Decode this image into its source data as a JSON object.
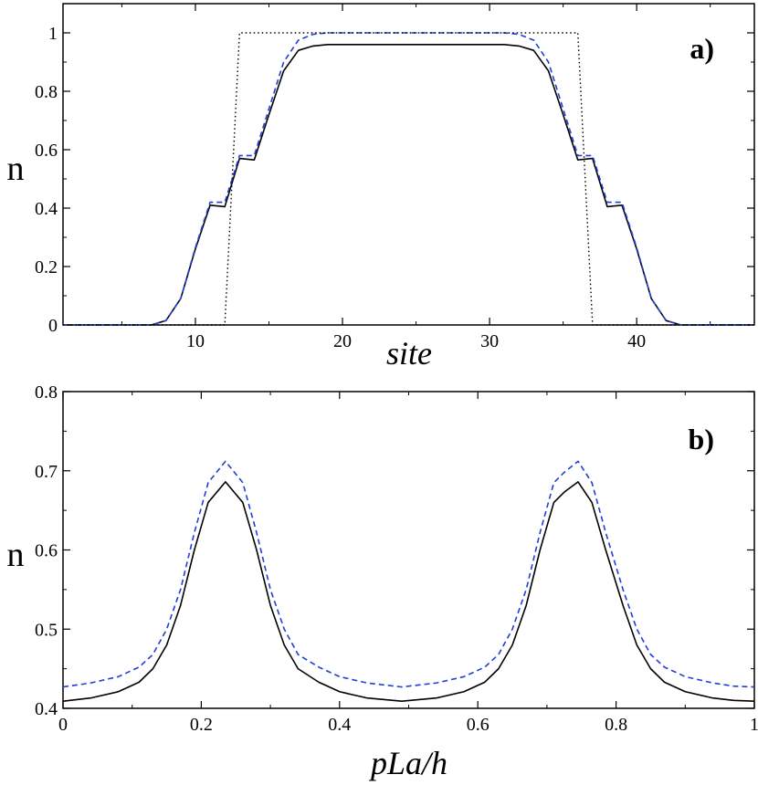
{
  "chart_data": [
    {
      "panel": "a",
      "type": "line",
      "panel_label": "a)",
      "xlabel": "site",
      "ylabel": "n",
      "xlim": [
        1,
        48
      ],
      "ylim": [
        0,
        1.1
      ],
      "xticks": [
        10,
        20,
        30,
        40
      ],
      "xtick_labels": [
        "10",
        "20",
        "30",
        "40"
      ],
      "yticks": [
        0,
        0.2,
        0.4,
        0.6,
        0.8,
        1
      ],
      "ytick_labels": [
        "0",
        "0.2",
        "0.4",
        "0.6",
        "0.8",
        "1"
      ],
      "series": [
        {
          "name": "solid",
          "style": "solid",
          "color": "#000000",
          "x": [
            1,
            2,
            3,
            4,
            5,
            6,
            7,
            8,
            9,
            10,
            11,
            12,
            13,
            14,
            15,
            16,
            17,
            18,
            19,
            20,
            21,
            22,
            23,
            24,
            25,
            26,
            27,
            28,
            29,
            30,
            31,
            32,
            33,
            34,
            35,
            36,
            37,
            38,
            39,
            40,
            41,
            42,
            43,
            44,
            45,
            46,
            47,
            48
          ],
          "y": [
            0,
            0,
            0,
            0,
            0,
            0,
            0,
            0.015,
            0.09,
            0.26,
            0.41,
            0.405,
            0.57,
            0.565,
            0.72,
            0.87,
            0.94,
            0.955,
            0.96,
            0.96,
            0.96,
            0.96,
            0.96,
            0.96,
            0.96,
            0.96,
            0.96,
            0.96,
            0.96,
            0.96,
            0.96,
            0.955,
            0.94,
            0.87,
            0.72,
            0.565,
            0.57,
            0.405,
            0.41,
            0.26,
            0.09,
            0.015,
            0,
            0,
            0,
            0,
            0,
            0
          ]
        },
        {
          "name": "dashed",
          "style": "dashed",
          "color": "#1f3fd6",
          "x": [
            1,
            2,
            3,
            4,
            5,
            6,
            7,
            8,
            9,
            10,
            11,
            12,
            13,
            14,
            15,
            16,
            17,
            18,
            19,
            20,
            21,
            22,
            23,
            24,
            25,
            26,
            27,
            28,
            29,
            30,
            31,
            32,
            33,
            34,
            35,
            36,
            37,
            38,
            39,
            40,
            41,
            42,
            43,
            44,
            45,
            46,
            47,
            48
          ],
          "y": [
            0,
            0,
            0,
            0,
            0,
            0,
            0,
            0.015,
            0.09,
            0.265,
            0.42,
            0.42,
            0.58,
            0.58,
            0.74,
            0.9,
            0.975,
            0.995,
            1,
            1,
            1,
            1,
            1,
            1,
            1,
            1,
            1,
            1,
            1,
            1,
            1,
            0.995,
            0.975,
            0.9,
            0.74,
            0.58,
            0.58,
            0.42,
            0.42,
            0.265,
            0.09,
            0.015,
            0,
            0,
            0,
            0,
            0,
            0
          ]
        },
        {
          "name": "dotted",
          "style": "dotted",
          "color": "#000000",
          "x": [
            1,
            12,
            13,
            36,
            37,
            48
          ],
          "y": [
            0,
            0,
            1,
            1,
            0,
            0
          ]
        }
      ]
    },
    {
      "panel": "b",
      "type": "line",
      "panel_label": "b)",
      "xlabel": "pLa/h",
      "ylabel": "n",
      "xlim": [
        0,
        1
      ],
      "ylim": [
        0.4,
        0.8
      ],
      "xticks": [
        0,
        0.2,
        0.4,
        0.6,
        0.8,
        1
      ],
      "xtick_labels": [
        "0",
        "0.2",
        "0.4",
        "0.6",
        "0.8",
        "1"
      ],
      "yticks": [
        0.4,
        0.5,
        0.6,
        0.7,
        0.8
      ],
      "ytick_labels": [
        "0.4",
        "0.5",
        "0.6",
        "0.7",
        "0.8"
      ],
      "series": [
        {
          "name": "solid",
          "style": "solid",
          "color": "#000000",
          "x": [
            0,
            0.04,
            0.08,
            0.11,
            0.13,
            0.15,
            0.17,
            0.19,
            0.21,
            0.235,
            0.26,
            0.28,
            0.3,
            0.32,
            0.34,
            0.37,
            0.4,
            0.44,
            0.49,
            0.54,
            0.58,
            0.61,
            0.63,
            0.65,
            0.67,
            0.69,
            0.71,
            0.725,
            0.745,
            0.765,
            0.785,
            0.81,
            0.83,
            0.85,
            0.87,
            0.9,
            0.94,
            0.97,
            1.0
          ],
          "y": [
            0.409,
            0.413,
            0.421,
            0.433,
            0.45,
            0.48,
            0.53,
            0.6,
            0.66,
            0.686,
            0.66,
            0.6,
            0.53,
            0.48,
            0.45,
            0.433,
            0.421,
            0.413,
            0.409,
            0.413,
            0.421,
            0.433,
            0.45,
            0.48,
            0.53,
            0.6,
            0.66,
            0.673,
            0.686,
            0.66,
            0.6,
            0.53,
            0.48,
            0.45,
            0.433,
            0.421,
            0.413,
            0.41,
            0.409
          ]
        },
        {
          "name": "dashed",
          "style": "dashed",
          "color": "#1f3fd6",
          "x": [
            0,
            0.04,
            0.08,
            0.11,
            0.13,
            0.15,
            0.17,
            0.19,
            0.21,
            0.235,
            0.26,
            0.28,
            0.3,
            0.32,
            0.34,
            0.37,
            0.4,
            0.44,
            0.49,
            0.54,
            0.58,
            0.61,
            0.63,
            0.65,
            0.67,
            0.69,
            0.71,
            0.725,
            0.745,
            0.765,
            0.785,
            0.81,
            0.83,
            0.85,
            0.87,
            0.9,
            0.94,
            0.97,
            1.0
          ],
          "y": [
            0.427,
            0.432,
            0.44,
            0.452,
            0.468,
            0.5,
            0.55,
            0.622,
            0.685,
            0.712,
            0.685,
            0.622,
            0.55,
            0.5,
            0.468,
            0.452,
            0.44,
            0.432,
            0.427,
            0.432,
            0.44,
            0.452,
            0.468,
            0.5,
            0.55,
            0.622,
            0.685,
            0.698,
            0.712,
            0.685,
            0.622,
            0.55,
            0.5,
            0.468,
            0.452,
            0.44,
            0.432,
            0.428,
            0.427
          ]
        }
      ]
    }
  ]
}
